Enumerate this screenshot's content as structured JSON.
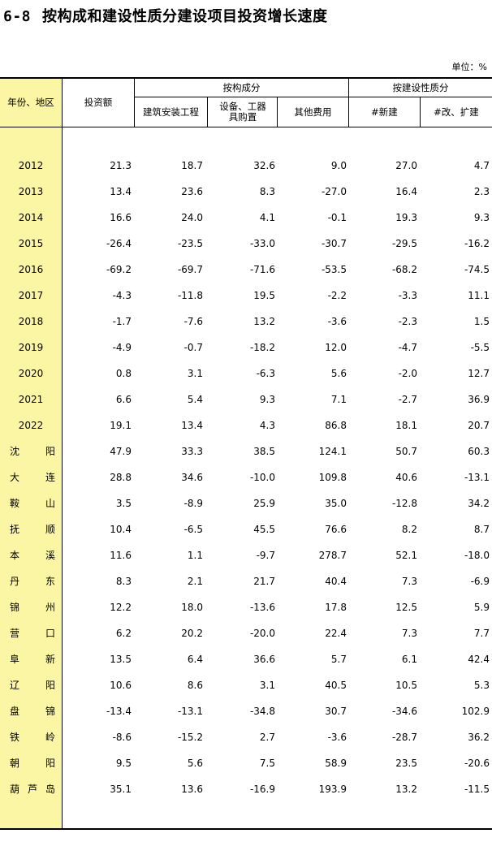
{
  "title": {
    "number": "6-8",
    "text": "按构成和建设性质分建设项目投资增长速度"
  },
  "unit": "单位：%",
  "header": {
    "col_year": "年份、地区",
    "col_invest": "投资额",
    "group_composition": "按构成分",
    "col_construction": "建筑安装工程",
    "col_equipment": "设备、工器具购置",
    "col_other": "其他费用",
    "group_nature": "按建设性质分",
    "col_new": "#新建",
    "col_rebuild": "#改、扩建"
  },
  "rows": [
    {
      "label": "2012",
      "values": [
        "21.3",
        "18.7",
        "32.6",
        "9.0",
        "27.0",
        "4.7"
      ]
    },
    {
      "label": "2013",
      "values": [
        "13.4",
        "23.6",
        "8.3",
        "-27.0",
        "16.4",
        "2.3"
      ]
    },
    {
      "label": "2014",
      "values": [
        "16.6",
        "24.0",
        "4.1",
        "-0.1",
        "19.3",
        "9.3"
      ]
    },
    {
      "label": "2015",
      "values": [
        "-26.4",
        "-23.5",
        "-33.0",
        "-30.7",
        "-29.5",
        "-16.2"
      ]
    },
    {
      "label": "2016",
      "values": [
        "-69.2",
        "-69.7",
        "-71.6",
        "-53.5",
        "-68.2",
        "-74.5"
      ]
    },
    {
      "label": "2017",
      "values": [
        "-4.3",
        "-11.8",
        "19.5",
        "-2.2",
        "-3.3",
        "11.1"
      ]
    },
    {
      "label": "2018",
      "values": [
        "-1.7",
        "-7.6",
        "13.2",
        "-3.6",
        "-2.3",
        "1.5"
      ]
    },
    {
      "label": "2019",
      "values": [
        "-4.9",
        "-0.7",
        "-18.2",
        "12.0",
        "-4.7",
        "-5.5"
      ]
    },
    {
      "label": "2020",
      "values": [
        "0.8",
        "3.1",
        "-6.3",
        "5.6",
        "-2.0",
        "12.7"
      ]
    },
    {
      "label": "2021",
      "values": [
        "6.6",
        "5.4",
        "9.3",
        "7.1",
        "-2.7",
        "36.9"
      ]
    },
    {
      "label": "2022",
      "values": [
        "19.1",
        "13.4",
        "4.3",
        "86.8",
        "18.1",
        "20.7"
      ]
    },
    {
      "label": "沈阳",
      "values": [
        "47.9",
        "33.3",
        "38.5",
        "124.1",
        "50.7",
        "60.3"
      ]
    },
    {
      "label": "大连",
      "values": [
        "28.8",
        "34.6",
        "-10.0",
        "109.8",
        "40.6",
        "-13.1"
      ]
    },
    {
      "label": "鞍山",
      "values": [
        "3.5",
        "-8.9",
        "25.9",
        "35.0",
        "-12.8",
        "34.2"
      ]
    },
    {
      "label": "抚顺",
      "values": [
        "10.4",
        "-6.5",
        "45.5",
        "76.6",
        "8.2",
        "8.7"
      ]
    },
    {
      "label": "本溪",
      "values": [
        "11.6",
        "1.1",
        "-9.7",
        "278.7",
        "52.1",
        "-18.0"
      ]
    },
    {
      "label": "丹东",
      "values": [
        "8.3",
        "2.1",
        "21.7",
        "40.4",
        "7.3",
        "-6.9"
      ]
    },
    {
      "label": "锦州",
      "values": [
        "12.2",
        "18.0",
        "-13.6",
        "17.8",
        "12.5",
        "5.9"
      ]
    },
    {
      "label": "营口",
      "values": [
        "6.2",
        "20.2",
        "-20.0",
        "22.4",
        "7.3",
        "7.7"
      ]
    },
    {
      "label": "阜新",
      "values": [
        "13.5",
        "6.4",
        "36.6",
        "5.7",
        "6.1",
        "42.4"
      ]
    },
    {
      "label": "辽阳",
      "values": [
        "10.6",
        "8.6",
        "3.1",
        "40.5",
        "10.5",
        "5.3"
      ]
    },
    {
      "label": "盘锦",
      "values": [
        "-13.4",
        "-13.1",
        "-34.8",
        "30.7",
        "-34.6",
        "102.9"
      ]
    },
    {
      "label": "铁岭",
      "values": [
        "-8.6",
        "-15.2",
        "2.7",
        "-3.6",
        "-28.7",
        "36.2"
      ]
    },
    {
      "label": "朝阳",
      "values": [
        "9.5",
        "5.6",
        "7.5",
        "58.9",
        "23.5",
        "-20.6"
      ]
    },
    {
      "label": "葫芦岛",
      "values": [
        "35.1",
        "13.6",
        "-16.9",
        "193.9",
        "13.2",
        "-11.5"
      ]
    }
  ]
}
